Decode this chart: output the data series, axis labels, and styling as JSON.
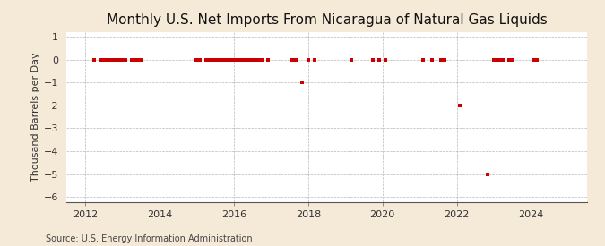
{
  "title": "Monthly U.S. Net Imports From Nicaragua of Natural Gas Liquids",
  "ylabel": "Thousand Barrels per Day",
  "source": "Source: U.S. Energy Information Administration",
  "xlim": [
    2011.5,
    2025.5
  ],
  "ylim": [
    -6.2,
    1.2
  ],
  "yticks": [
    1,
    0,
    -1,
    -2,
    -3,
    -4,
    -5,
    -6
  ],
  "xticks": [
    2012,
    2014,
    2016,
    2018,
    2020,
    2022,
    2024
  ],
  "background_color": "#f5ead8",
  "plot_bg_color": "#ffffff",
  "marker_color": "#cc0000",
  "grid_color": "#999999",
  "title_fontsize": 11,
  "label_fontsize": 8,
  "tick_fontsize": 8,
  "source_fontsize": 7,
  "data_points": [
    [
      2012.25,
      0
    ],
    [
      2012.417,
      0
    ],
    [
      2012.5,
      0
    ],
    [
      2012.583,
      0
    ],
    [
      2012.667,
      0
    ],
    [
      2012.75,
      0
    ],
    [
      2012.833,
      0
    ],
    [
      2012.917,
      0
    ],
    [
      2013.0,
      0
    ],
    [
      2013.083,
      0
    ],
    [
      2013.25,
      0
    ],
    [
      2013.333,
      0
    ],
    [
      2013.417,
      0
    ],
    [
      2013.5,
      0
    ],
    [
      2015.0,
      0
    ],
    [
      2015.083,
      0
    ],
    [
      2015.25,
      0
    ],
    [
      2015.333,
      0
    ],
    [
      2015.417,
      0
    ],
    [
      2015.5,
      0
    ],
    [
      2015.583,
      0
    ],
    [
      2015.667,
      0
    ],
    [
      2015.75,
      0
    ],
    [
      2015.833,
      0
    ],
    [
      2015.917,
      0
    ],
    [
      2016.0,
      0
    ],
    [
      2016.083,
      0
    ],
    [
      2016.167,
      0
    ],
    [
      2016.25,
      0
    ],
    [
      2016.333,
      0
    ],
    [
      2016.417,
      0
    ],
    [
      2016.5,
      0
    ],
    [
      2016.583,
      0
    ],
    [
      2016.667,
      0
    ],
    [
      2016.75,
      0
    ],
    [
      2016.917,
      0
    ],
    [
      2017.583,
      0
    ],
    [
      2017.667,
      0
    ],
    [
      2017.833,
      -1
    ],
    [
      2018.0,
      0
    ],
    [
      2018.167,
      0
    ],
    [
      2019.167,
      0
    ],
    [
      2019.75,
      0
    ],
    [
      2019.917,
      0
    ],
    [
      2020.083,
      0
    ],
    [
      2021.083,
      0
    ],
    [
      2021.333,
      0
    ],
    [
      2021.583,
      0
    ],
    [
      2021.667,
      0
    ],
    [
      2022.083,
      -2
    ],
    [
      2022.833,
      -5
    ],
    [
      2023.0,
      0
    ],
    [
      2023.083,
      0
    ],
    [
      2023.167,
      0
    ],
    [
      2023.25,
      0
    ],
    [
      2023.417,
      0
    ],
    [
      2023.5,
      0
    ],
    [
      2024.083,
      0
    ],
    [
      2024.167,
      0
    ]
  ]
}
